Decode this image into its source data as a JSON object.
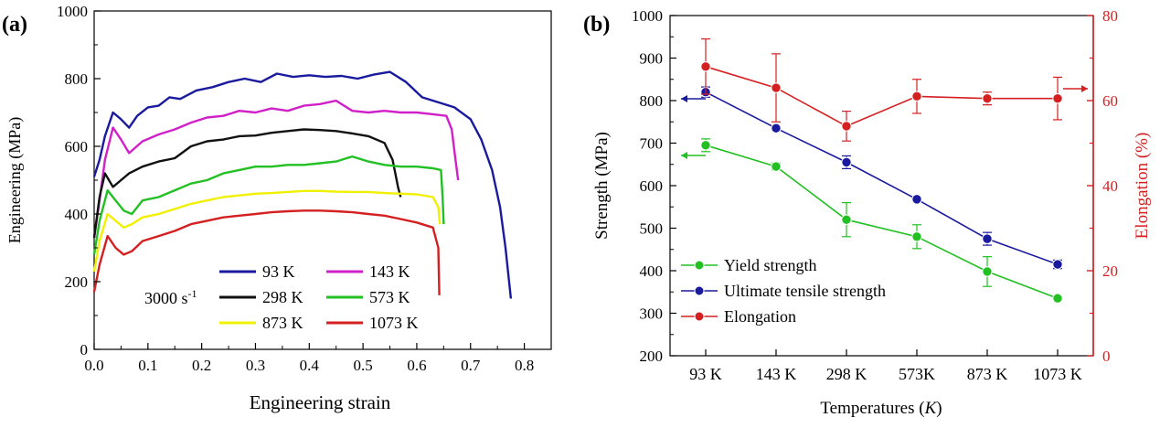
{
  "chart_data": [
    {
      "type": "line",
      "panel_label": "(a)",
      "xlabel": "Engineering strain",
      "ylabel": "Engineering (MPa)",
      "xlim": [
        0,
        0.85
      ],
      "ylim": [
        0,
        1000
      ],
      "xticks": [
        0.0,
        0.1,
        0.2,
        0.3,
        0.4,
        0.5,
        0.6,
        0.7,
        0.8
      ],
      "xtick_labels": [
        "0.0",
        "0.1",
        "0.2",
        "0.3",
        "0.4",
        "0.5",
        "0.6",
        "0.7",
        "0.8"
      ],
      "yticks": [
        0,
        200,
        400,
        600,
        800,
        1000
      ],
      "ytick_labels": [
        "0",
        "200",
        "400",
        "600",
        "800",
        "1000"
      ],
      "annotation": {
        "base": "3000 s",
        "sup": "-1"
      },
      "grid": false,
      "legend_position": "lower-center",
      "series": [
        {
          "name": "93 K",
          "color": "#1a1a9e",
          "x": [
            0.0,
            0.01,
            0.02,
            0.035,
            0.05,
            0.065,
            0.08,
            0.1,
            0.12,
            0.14,
            0.16,
            0.19,
            0.22,
            0.25,
            0.28,
            0.31,
            0.34,
            0.37,
            0.4,
            0.43,
            0.46,
            0.49,
            0.52,
            0.55,
            0.58,
            0.61,
            0.64,
            0.67,
            0.7,
            0.72,
            0.74,
            0.755,
            0.765,
            0.775
          ],
          "y": [
            510,
            560,
            630,
            700,
            680,
            655,
            690,
            715,
            720,
            745,
            740,
            765,
            775,
            790,
            800,
            790,
            815,
            805,
            810,
            805,
            808,
            800,
            812,
            820,
            790,
            745,
            730,
            715,
            680,
            620,
            530,
            420,
            300,
            150
          ]
        },
        {
          "name": "143 K",
          "color": "#d020c8",
          "x": [
            0.0,
            0.01,
            0.02,
            0.035,
            0.05,
            0.065,
            0.09,
            0.12,
            0.15,
            0.18,
            0.21,
            0.24,
            0.27,
            0.3,
            0.33,
            0.36,
            0.39,
            0.42,
            0.45,
            0.48,
            0.51,
            0.54,
            0.57,
            0.6,
            0.63,
            0.655,
            0.665,
            0.672,
            0.677
          ],
          "y": [
            330,
            440,
            560,
            655,
            620,
            580,
            615,
            635,
            650,
            670,
            685,
            690,
            705,
            700,
            712,
            705,
            720,
            725,
            735,
            705,
            700,
            705,
            700,
            700,
            695,
            690,
            650,
            560,
            500
          ]
        },
        {
          "name": "298 K",
          "color": "#111111",
          "x": [
            0.0,
            0.01,
            0.02,
            0.035,
            0.05,
            0.065,
            0.09,
            0.12,
            0.15,
            0.18,
            0.21,
            0.24,
            0.27,
            0.3,
            0.33,
            0.36,
            0.39,
            0.42,
            0.45,
            0.48,
            0.51,
            0.54,
            0.555,
            0.565,
            0.57
          ],
          "y": [
            330,
            450,
            520,
            480,
            500,
            520,
            540,
            555,
            565,
            600,
            615,
            620,
            630,
            632,
            640,
            645,
            650,
            648,
            645,
            638,
            630,
            610,
            560,
            480,
            450
          ]
        },
        {
          "name": "573 K",
          "color": "#22c022",
          "x": [
            0.0,
            0.01,
            0.025,
            0.04,
            0.055,
            0.07,
            0.09,
            0.12,
            0.15,
            0.18,
            0.21,
            0.24,
            0.27,
            0.3,
            0.33,
            0.36,
            0.39,
            0.42,
            0.45,
            0.48,
            0.51,
            0.54,
            0.57,
            0.6,
            0.63,
            0.645,
            0.648,
            0.65
          ],
          "y": [
            280,
            380,
            470,
            440,
            410,
            400,
            440,
            450,
            470,
            490,
            500,
            520,
            530,
            540,
            540,
            545,
            545,
            550,
            555,
            570,
            555,
            545,
            540,
            540,
            535,
            530,
            450,
            370
          ]
        },
        {
          "name": "873 K",
          "color": "#f0f000",
          "x": [
            0.0,
            0.01,
            0.025,
            0.04,
            0.055,
            0.07,
            0.09,
            0.12,
            0.15,
            0.18,
            0.21,
            0.24,
            0.27,
            0.3,
            0.33,
            0.36,
            0.39,
            0.42,
            0.45,
            0.48,
            0.51,
            0.54,
            0.57,
            0.6,
            0.63,
            0.64,
            0.643
          ],
          "y": [
            230,
            320,
            400,
            380,
            360,
            370,
            390,
            400,
            415,
            430,
            440,
            450,
            455,
            460,
            462,
            465,
            468,
            468,
            466,
            465,
            465,
            462,
            460,
            458,
            450,
            420,
            370
          ]
        },
        {
          "name": "1073 K",
          "color": "#d42020",
          "x": [
            0.0,
            0.01,
            0.025,
            0.04,
            0.055,
            0.07,
            0.09,
            0.12,
            0.15,
            0.18,
            0.21,
            0.24,
            0.27,
            0.3,
            0.33,
            0.36,
            0.39,
            0.42,
            0.45,
            0.48,
            0.51,
            0.54,
            0.57,
            0.6,
            0.63,
            0.64,
            0.642
          ],
          "y": [
            170,
            250,
            335,
            300,
            280,
            290,
            320,
            335,
            350,
            370,
            380,
            390,
            395,
            400,
            405,
            408,
            410,
            410,
            408,
            405,
            400,
            395,
            385,
            375,
            360,
            300,
            160
          ]
        }
      ]
    },
    {
      "type": "line",
      "panel_label": "(b)",
      "xlabel": "Temperatures",
      "xlabel_var": "K",
      "ylabel": "Strength (MPa)",
      "y2label": "Elongation (%)",
      "categories": [
        "93 K",
        "143 K",
        "298 K",
        "573K",
        "873 K",
        "1073 K"
      ],
      "ylim": [
        200,
        1000
      ],
      "yticks": [
        200,
        300,
        400,
        500,
        600,
        700,
        800,
        900,
        1000
      ],
      "ytick_labels": [
        "200",
        "300",
        "400",
        "500",
        "600",
        "700",
        "800",
        "900",
        "1000"
      ],
      "y2lim": [
        0,
        80
      ],
      "y2ticks": [
        0,
        20,
        40,
        60,
        80
      ],
      "y2tick_labels": [
        "0",
        "20",
        "40",
        "60",
        "80"
      ],
      "grid": false,
      "legend_position": "lower-left",
      "series": [
        {
          "name": "Yield strength",
          "color": "#22c022",
          "axis": "left",
          "values": [
            695,
            645,
            520,
            480,
            398,
            335
          ],
          "errors": [
            15,
            8,
            40,
            28,
            35,
            5
          ]
        },
        {
          "name": "Ultimate tensile strength",
          "color": "#1a1a9e",
          "axis": "left",
          "values": [
            820,
            735,
            655,
            568,
            475,
            415
          ],
          "errors": [
            12,
            5,
            15,
            5,
            15,
            10
          ]
        },
        {
          "name": "Elongation",
          "color": "#d42020",
          "axis": "right",
          "values": [
            68,
            63,
            54,
            61,
            60.5,
            60.5
          ],
          "errors": [
            6.5,
            8,
            3.5,
            4,
            1.5,
            5
          ]
        }
      ]
    }
  ]
}
